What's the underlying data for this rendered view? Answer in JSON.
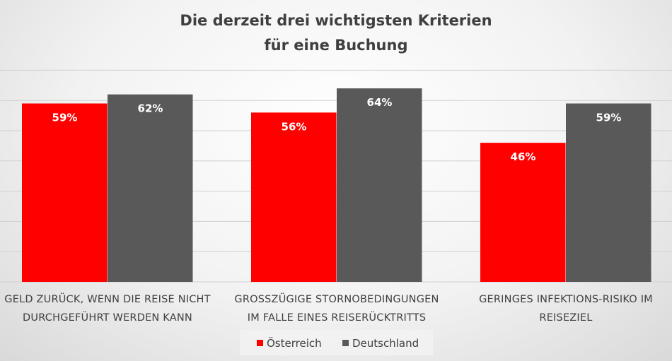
{
  "chart_data": {
    "type": "bar",
    "title_lines": [
      "Die derzeit drei wichtigsten Kriterien",
      "für eine Buchung"
    ],
    "categories": [
      [
        "GELD ZURÜCK, WENN DIE REISE NICHT",
        "DURCHGEFÜHRT WERDEN KANN"
      ],
      [
        "GROSSZÜGIGE STORNOBEDINGUNGEN",
        "IM FALLE EINES REISERÜCKTRITTS"
      ],
      [
        "GERINGES INFEKTIONS-RISIKO IM",
        "REISEZIEL"
      ]
    ],
    "series": [
      {
        "name": "Österreich",
        "color": "#ff0000",
        "values": [
          59,
          56,
          46
        ]
      },
      {
        "name": "Deutschland",
        "color": "#595959",
        "values": [
          62,
          64,
          59
        ]
      }
    ],
    "value_suffix": "%",
    "ylim": [
      0,
      70
    ],
    "grid": true,
    "legend_position": "bottom"
  }
}
